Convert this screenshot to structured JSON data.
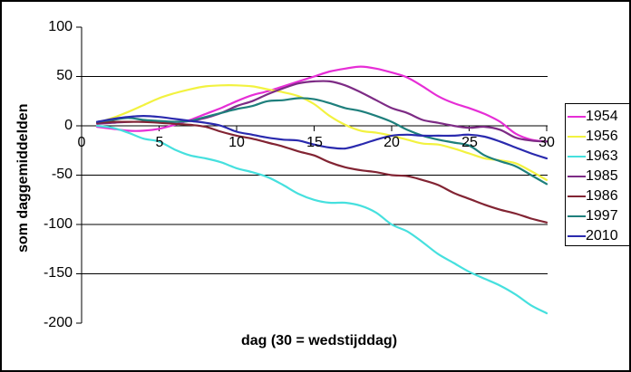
{
  "window": {
    "background_color": "#ffffff",
    "border_color": "#000000"
  },
  "chart_data": {
    "type": "line",
    "title": "",
    "xlabel": "dag (30 = wedstijddag)",
    "ylabel": "som daggemiddelden",
    "xlim": [
      0,
      30
    ],
    "ylim": [
      -200,
      100
    ],
    "x_ticks": [
      0,
      5,
      10,
      15,
      20,
      25,
      30
    ],
    "y_ticks": [
      100,
      50,
      0,
      "-50",
      "-100",
      "-150",
      "-200"
    ],
    "gridline_values": [
      50,
      -50,
      -100,
      -150
    ],
    "grid": "horizontal-major",
    "legend_position": "right",
    "axis_color": "#000000",
    "x": [
      1,
      2,
      3,
      4,
      5,
      6,
      7,
      8,
      9,
      10,
      11,
      12,
      13,
      14,
      15,
      16,
      17,
      18,
      19,
      20,
      21,
      22,
      23,
      24,
      25,
      26,
      27,
      28,
      29,
      30
    ],
    "series": [
      {
        "name": "1954",
        "color": "#E62ED6",
        "values": [
          -1,
          -3,
          -5,
          -5,
          -3,
          1,
          6,
          12,
          18,
          25,
          31,
          35,
          40,
          45,
          50,
          55,
          58,
          60,
          58,
          54,
          49,
          40,
          30,
          23,
          18,
          12,
          4,
          -8,
          -14,
          -16
        ]
      },
      {
        "name": "1956",
        "color": "#F2F240",
        "values": [
          3,
          8,
          14,
          21,
          28,
          33,
          37,
          40,
          41,
          41,
          40,
          37,
          34,
          30,
          22,
          10,
          1,
          -5,
          -7,
          -10,
          -14,
          -18,
          -19,
          -23,
          -28,
          -33,
          -35,
          -38,
          -46,
          -55
        ]
      },
      {
        "name": "1963",
        "color": "#46E0DE",
        "values": [
          0,
          -2,
          -7,
          -13,
          -16,
          -24,
          -30,
          -33,
          -37,
          -43,
          -47,
          -52,
          -60,
          -69,
          -75,
          -78,
          -78,
          -81,
          -88,
          -100,
          -107,
          -118,
          -130,
          -139,
          -148,
          -155,
          -162,
          -171,
          -182,
          -190
        ]
      },
      {
        "name": "1985",
        "color": "#7D2B85",
        "values": [
          2,
          3,
          4,
          4,
          4,
          4,
          5,
          8,
          13,
          20,
          25,
          32,
          38,
          43,
          45,
          45,
          41,
          34,
          26,
          18,
          13,
          6,
          3,
          0,
          -2,
          -1,
          -4,
          -12,
          -15,
          -16
        ]
      },
      {
        "name": "1986",
        "color": "#822433",
        "values": [
          3,
          4,
          4,
          4,
          3,
          2,
          1,
          -1,
          -6,
          -10,
          -13,
          -17,
          -21,
          -26,
          -30,
          -37,
          -42,
          -45,
          -47,
          -50,
          -51,
          -55,
          -60,
          -68,
          -74,
          -80,
          -85,
          -89,
          -94,
          -98
        ]
      },
      {
        "name": "1997",
        "color": "#1E7F7C",
        "values": [
          4,
          6,
          8,
          6,
          5,
          4,
          5,
          9,
          13,
          17,
          20,
          25,
          26,
          28,
          27,
          23,
          18,
          15,
          10,
          4,
          -4,
          -10,
          -14,
          -17,
          -20,
          -30,
          -36,
          -41,
          -50,
          -59
        ]
      },
      {
        "name": "2010",
        "color": "#2A2AAE",
        "values": [
          4,
          7,
          9,
          10,
          9,
          7,
          5,
          3,
          0,
          -6,
          -9,
          -12,
          -14,
          -15,
          -19,
          -22,
          -23,
          -19,
          -14,
          -10,
          -9,
          -10,
          -10,
          -10,
          -9,
          -11,
          -16,
          -22,
          -28,
          -33
        ]
      }
    ]
  }
}
